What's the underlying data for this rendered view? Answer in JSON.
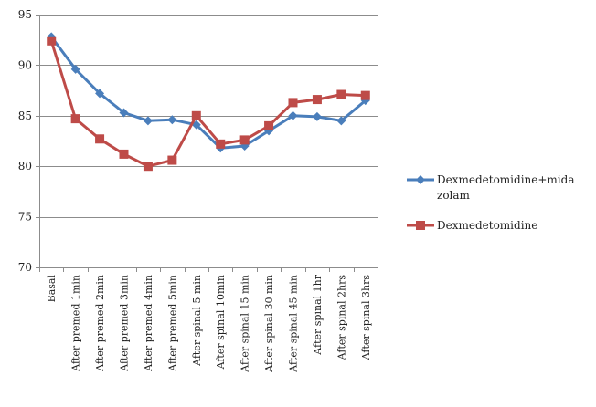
{
  "chart_data": {
    "type": "line",
    "title": "",
    "xlabel": "",
    "ylabel": "",
    "ylim": [
      70,
      95
    ],
    "y_ticks": [
      70,
      75,
      80,
      85,
      90,
      95
    ],
    "grid": true,
    "legend_position": "right",
    "categories": [
      "Basal",
      "After premed 1min",
      "After premed 2min",
      "After premed 3min",
      "After premed 4min",
      "After premed 5min",
      "After spinal 5 min",
      "After spinal 10min",
      "After spinal 15 min",
      "After spinal 30 min",
      "After spinal 45 min",
      "After spinal 1hr",
      "After spinal 2hrs",
      "After spinal 3hrs"
    ],
    "series": [
      {
        "name": "Dexmedetomidine+midazolam",
        "legend_lines": [
          "Dexmedetomidine+mida",
          "zolam"
        ],
        "color": "#4a7ebb",
        "marker": "diamond",
        "values": [
          92.8,
          89.6,
          87.2,
          85.3,
          84.5,
          84.6,
          84.1,
          81.8,
          82.0,
          83.5,
          85.0,
          84.9,
          84.5,
          86.5
        ]
      },
      {
        "name": "Dexmedetomidine",
        "legend_lines": [
          "Dexmedetomidine"
        ],
        "color": "#be4b48",
        "marker": "square",
        "values": [
          92.4,
          84.7,
          82.7,
          81.2,
          80.0,
          80.6,
          85.0,
          82.2,
          82.6,
          84.0,
          86.3,
          86.6,
          87.1,
          87.0
        ]
      }
    ]
  }
}
